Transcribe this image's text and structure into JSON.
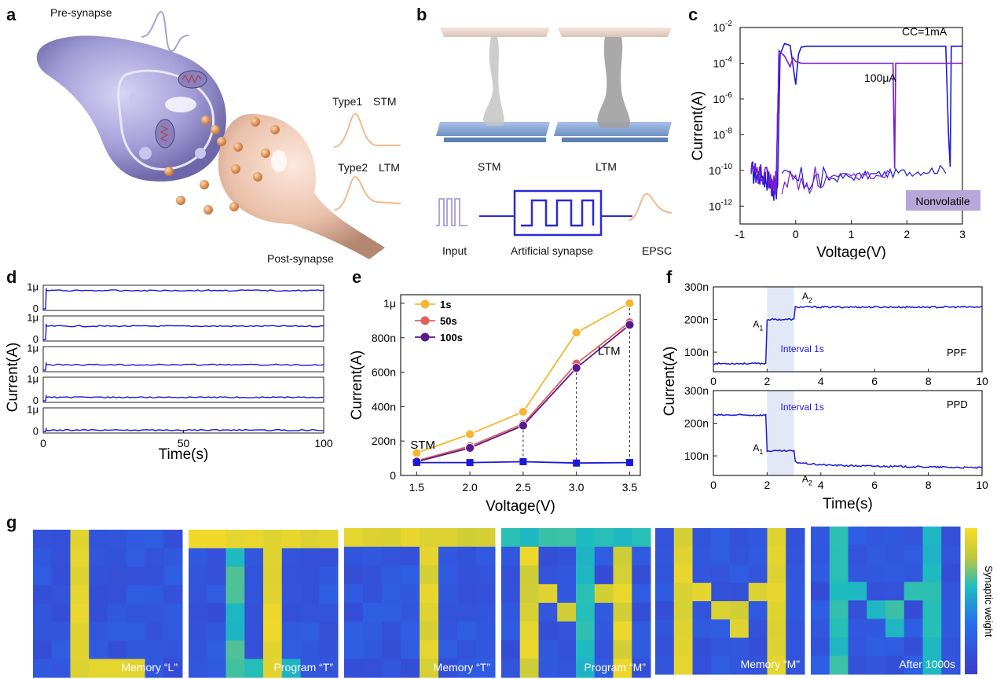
{
  "figure": {
    "panel_labels": [
      "a",
      "b",
      "c",
      "d",
      "e",
      "f",
      "g"
    ],
    "a": {
      "pre": "Pre-synapse",
      "post": "Post-synapse",
      "type1": "Type1",
      "stm": "STM",
      "type2": "Type2",
      "ltm": "LTM"
    },
    "b": {
      "stm": "STM",
      "ltm": "LTM",
      "input": "Input",
      "synapse": "Artificial synapse",
      "epsc": "EPSC"
    },
    "g": {
      "colorbar_label": "Synaptic weight",
      "captions": [
        "Memory “L”",
        "Program “T”",
        "Memory “T”",
        "Program “M”",
        "Memory “M”",
        "After 1000s"
      ]
    }
  },
  "colors": {
    "blue": "#1a1ad6",
    "purple": "#7a1bd0",
    "orange": "#f5b731",
    "red": "#e0605a",
    "darkpurple": "#5a1a8f",
    "badge": "#b7a6d8"
  },
  "chart_data": [
    {
      "id": "c",
      "type": "line",
      "xlabel": "Voltage(V)",
      "ylabel": "Current(A)",
      "xlim": [
        -1,
        3
      ],
      "ylim_log10": [
        -13,
        -2
      ],
      "yscale": "log",
      "xticks": [
        "-1",
        "0",
        "1",
        "2",
        "3"
      ],
      "yticks": [
        {
          "exp": -2,
          "label": "10"
        },
        {
          "exp": -4,
          "label": "10"
        },
        {
          "exp": -6,
          "label": "10"
        },
        {
          "exp": -8,
          "label": "10"
        },
        {
          "exp": -10,
          "label": "10"
        },
        {
          "exp": -12,
          "label": "10"
        }
      ],
      "annotations": [
        "CC=1mA",
        "100μA"
      ],
      "badge": "Nonvolatile",
      "series": [
        {
          "color": "#1a1ad6",
          "x": [
            -0.8,
            -0.6,
            -0.45,
            -0.35,
            -0.32,
            -0.28,
            -0.2,
            -0.1,
            0.0,
            0.05,
            0.1,
            0.2,
            0.5,
            1.0,
            1.5,
            2.0,
            2.5,
            2.7,
            2.75,
            2.78,
            2.8,
            3.0
          ],
          "log10y": [
            -10.1,
            -10.3,
            -10.6,
            -11.4,
            -10.0,
            -3.5,
            -2.9,
            -3.0,
            -5.2,
            -3.5,
            -3.1,
            -3.05,
            -3.05,
            -3.05,
            -3.05,
            -3.05,
            -3.05,
            -3.05,
            -8.0,
            -9.8,
            -3.05,
            -3.05
          ]
        },
        {
          "color": "#7a1bd0",
          "x": [
            -0.8,
            -0.5,
            -0.4,
            -0.35,
            -0.3,
            -0.2,
            -0.1,
            -0.05,
            0.0,
            0.1,
            0.5,
            1.0,
            1.5,
            1.75,
            1.78,
            1.8,
            1.9,
            2.5,
            3.0
          ],
          "log10y": [
            -10.2,
            -10.5,
            -11.0,
            -10.6,
            -3.3,
            -3.6,
            -4.2,
            -3.7,
            -3.9,
            -4.0,
            -4.0,
            -4.0,
            -4.0,
            -4.0,
            -9.9,
            -4.0,
            -4.0,
            -4.0,
            -4.0
          ]
        }
      ]
    },
    {
      "id": "d",
      "type": "line",
      "xlabel": "Time(s)",
      "ylabel": "Current(A)",
      "xlim": [
        0,
        100
      ],
      "xticks": [
        "0",
        "50",
        "100"
      ],
      "subplot_ytick_labels": [
        "1μ",
        "0"
      ],
      "subplots": [
        {
          "level_uA": 0.85
        },
        {
          "level_uA": 0.62
        },
        {
          "level_uA": 0.25
        },
        {
          "level_uA": 0.16
        },
        {
          "level_uA": 0.06
        }
      ]
    },
    {
      "id": "e",
      "type": "line",
      "xlabel": "Voltage(V)",
      "ylabel": "Current(A)",
      "x": [
        1.5,
        2.0,
        2.5,
        3.0,
        3.5
      ],
      "xlim": [
        1.35,
        3.6
      ],
      "ylim_nA": [
        0,
        1050
      ],
      "xticks": [
        "1.5",
        "2.0",
        "2.5",
        "3.0",
        "3.5"
      ],
      "yticks": [
        {
          "v": 0,
          "label": "0"
        },
        {
          "v": 200,
          "label": "200n"
        },
        {
          "v": 400,
          "label": "400n"
        },
        {
          "v": 600,
          "label": "600n"
        },
        {
          "v": 800,
          "label": "800n"
        },
        {
          "v": 1000,
          "label": "1μ"
        }
      ],
      "annotations": [
        "STM",
        "LTM"
      ],
      "series": [
        {
          "name": "1s",
          "color": "#f5b731",
          "values_nA": [
            130,
            240,
            370,
            830,
            1000
          ]
        },
        {
          "name": "50s",
          "color": "#e0605a",
          "values_nA": [
            85,
            170,
            300,
            650,
            890
          ]
        },
        {
          "name": "100s",
          "color": "#5a1a8f",
          "values_nA": [
            80,
            160,
            290,
            625,
            875
          ]
        },
        {
          "color": "#1a1ad6",
          "marker": "square",
          "values_nA": [
            75,
            75,
            80,
            72,
            75
          ]
        }
      ]
    },
    {
      "id": "f",
      "type": "line",
      "xlabel": "Time(s)",
      "ylabel": "Current(A)",
      "xlim": [
        0,
        10
      ],
      "ylim_nA": [
        40,
        300
      ],
      "xticks": [
        "0",
        "2",
        "4",
        "6",
        "8",
        "10"
      ],
      "yticks": [
        {
          "v": 100,
          "label": "100n"
        },
        {
          "v": 200,
          "label": "200n"
        },
        {
          "v": 300,
          "label": "300n"
        }
      ],
      "interval_label": "Interval 1s",
      "subplots": [
        {
          "label": "PPF",
          "a1_label": "A",
          "a2_label": "A",
          "levels_nA": [
            65,
            200,
            238
          ],
          "steps_s": [
            2,
            3
          ]
        },
        {
          "label": "PPD",
          "a1_label": "A",
          "a2_label": "A",
          "levels_nA": [
            225,
            115,
            72
          ],
          "steps_s": [
            2,
            3
          ]
        }
      ]
    }
  ]
}
